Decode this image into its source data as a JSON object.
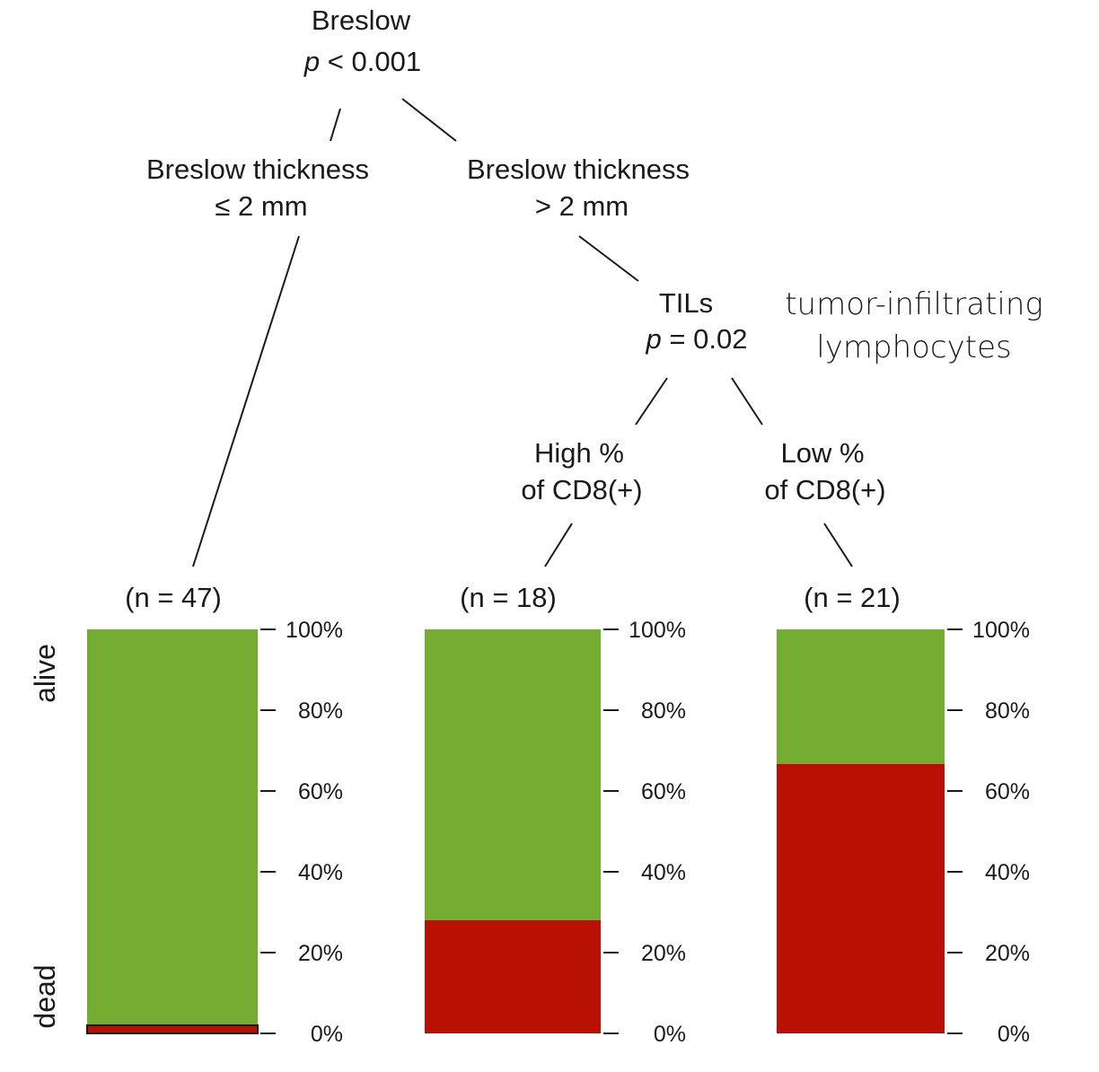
{
  "root": {
    "label": "Breslow",
    "p_symbol": "p",
    "p_rest": " < 0.001"
  },
  "left_branch": {
    "line1": "Breslow thickness",
    "line2": "≤ 2 mm"
  },
  "right_branch": {
    "line1": "Breslow thickness",
    "line2": "> 2 mm"
  },
  "node2": {
    "label": "TILs",
    "p_symbol": "p",
    "p_rest": " = 0.02"
  },
  "annotation": {
    "line1": "tumor-infiltrating",
    "line2": "lymphocytes"
  },
  "high_branch": {
    "line1": "High %",
    "line2": "of CD8(+)"
  },
  "low_branch": {
    "line1": "Low %",
    "line2": "of CD8(+)"
  },
  "side_labels": {
    "top": "alive",
    "bottom": "dead"
  },
  "colors": {
    "alive": "#74ad32",
    "dead": "#b81104"
  },
  "chart_data": {
    "type": "bar",
    "stacked": true,
    "categories": [
      "(n = 47)",
      "(n = 18)",
      "(n = 21)"
    ],
    "series": [
      {
        "name": "dead",
        "values": [
          2,
          28,
          66.7
        ]
      },
      {
        "name": "alive",
        "values": [
          98,
          72,
          33.3
        ]
      }
    ],
    "ylim": [
      0,
      100
    ],
    "yticks": [
      "0%",
      "20%",
      "40%",
      "60%",
      "80%",
      "100%"
    ]
  }
}
